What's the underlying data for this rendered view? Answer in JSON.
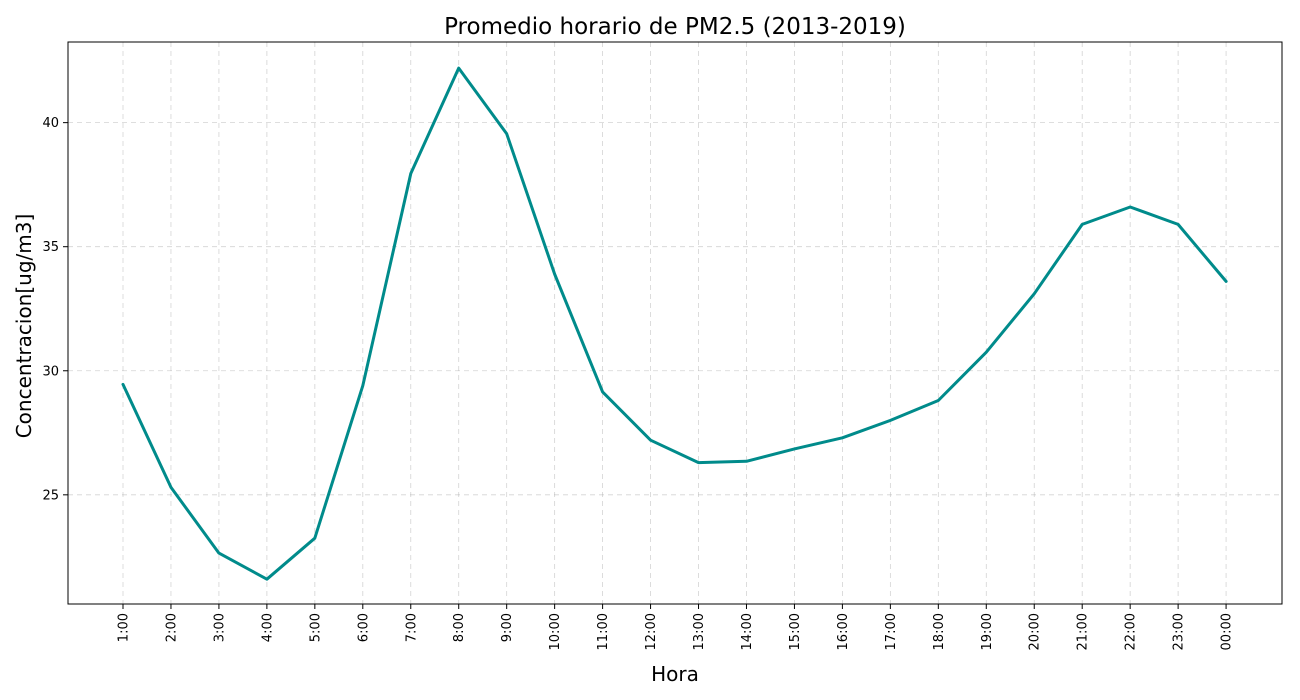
{
  "chart_data": {
    "type": "line",
    "title": "Promedio horario de PM2.5 (2013-2019)",
    "xlabel": "Hora",
    "ylabel": "Concentracion[ug/m3]",
    "categories": [
      "1:00",
      "2:00",
      "3:00",
      "4:00",
      "5:00",
      "6:00",
      "7:00",
      "8:00",
      "9:00",
      "10:00",
      "11:00",
      "12:00",
      "13:00",
      "14:00",
      "15:00",
      "16:00",
      "17:00",
      "18:00",
      "19:00",
      "20:00",
      "21:00",
      "22:00",
      "23:00",
      "00:00"
    ],
    "series": [
      {
        "values": [
          29.45,
          25.3,
          22.65,
          21.6,
          23.25,
          29.4,
          37.95,
          42.2,
          39.55,
          33.9,
          29.15,
          27.2,
          26.3,
          26.35,
          26.85,
          27.3,
          28.0,
          28.8,
          30.75,
          33.1,
          35.9,
          36.6,
          35.9,
          33.6
        ],
        "color": "#008b8b"
      }
    ],
    "yticks": [
      25,
      30,
      35,
      40
    ],
    "ylim": [
      20.6,
      43.25
    ],
    "grid": true,
    "legend": "none"
  }
}
